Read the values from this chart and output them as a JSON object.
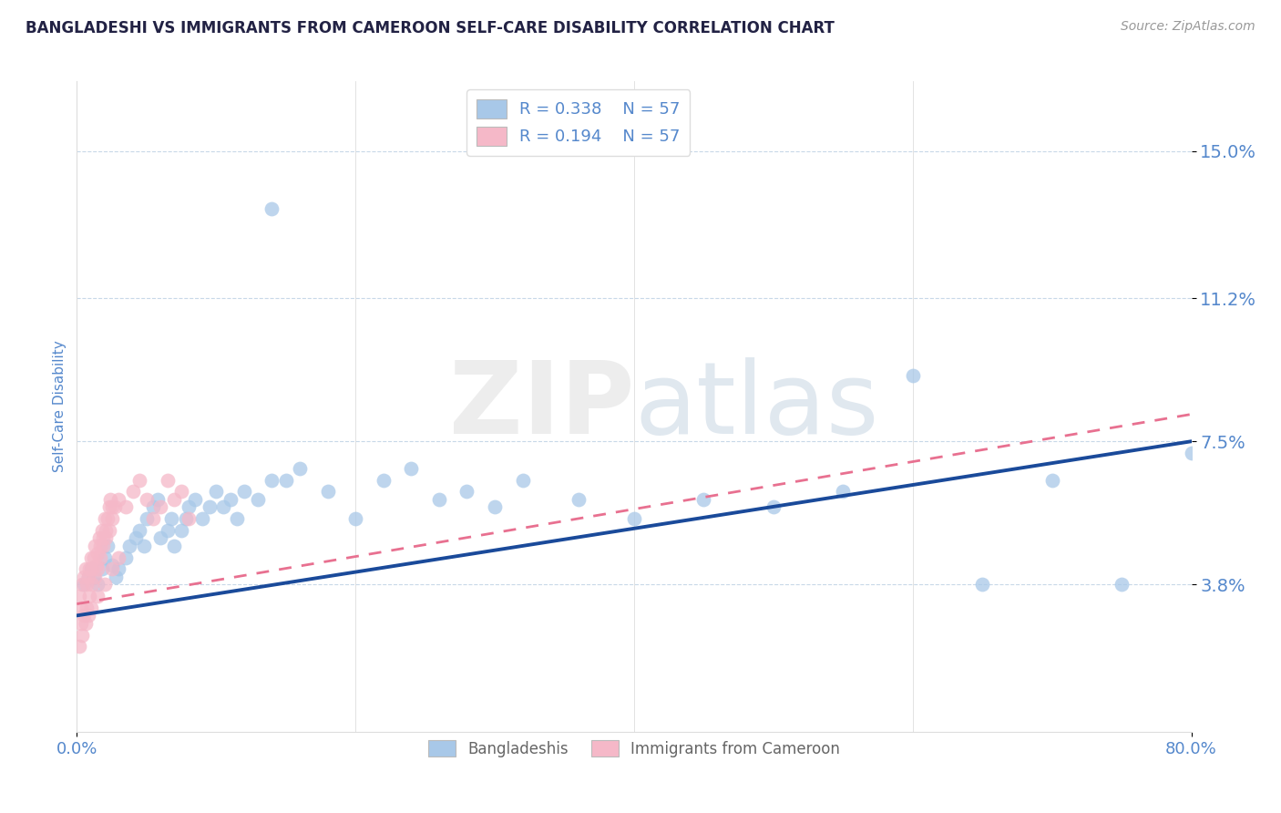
{
  "title": "BANGLADESHI VS IMMIGRANTS FROM CAMEROON SELF-CARE DISABILITY CORRELATION CHART",
  "source": "Source: ZipAtlas.com",
  "ylabel": "Self-Care Disability",
  "xlim": [
    0.0,
    0.8
  ],
  "ylim": [
    0.0,
    0.168
  ],
  "yticks": [
    0.038,
    0.075,
    0.112,
    0.15
  ],
  "ytick_labels": [
    "3.8%",
    "7.5%",
    "11.2%",
    "15.0%"
  ],
  "xtick_labels": [
    "0.0%",
    "80.0%"
  ],
  "xtick_positions": [
    0.0,
    0.8
  ],
  "blue_color": "#A8C8E8",
  "pink_color": "#F5B8C8",
  "blue_line_color": "#1A4A9A",
  "pink_line_color": "#E87090",
  "grid_color": "#C8D8E8",
  "legend_R1": "R = 0.338",
  "legend_N1": "N = 57",
  "legend_R2": "R = 0.194",
  "legend_N2": "N = 57",
  "label1": "Bangladeshis",
  "label2": "Immigrants from Cameroon",
  "tick_color": "#5588CC",
  "background_color": "#FFFFFF",
  "blue_trend": [
    0.03,
    0.075
  ],
  "pink_trend": [
    0.033,
    0.082
  ],
  "blue_x": [
    0.005,
    0.008,
    0.01,
    0.012,
    0.015,
    0.018,
    0.02,
    0.022,
    0.025,
    0.028,
    0.03,
    0.035,
    0.038,
    0.042,
    0.045,
    0.048,
    0.05,
    0.055,
    0.058,
    0.06,
    0.065,
    0.068,
    0.07,
    0.075,
    0.078,
    0.08,
    0.085,
    0.09,
    0.095,
    0.1,
    0.105,
    0.11,
    0.115,
    0.12,
    0.13,
    0.14,
    0.15,
    0.16,
    0.18,
    0.2,
    0.22,
    0.24,
    0.26,
    0.28,
    0.3,
    0.32,
    0.36,
    0.4,
    0.45,
    0.5,
    0.55,
    0.6,
    0.65,
    0.7,
    0.75,
    0.8,
    0.14
  ],
  "blue_y": [
    0.038,
    0.04,
    0.042,
    0.04,
    0.038,
    0.042,
    0.045,
    0.048,
    0.043,
    0.04,
    0.042,
    0.045,
    0.048,
    0.05,
    0.052,
    0.048,
    0.055,
    0.058,
    0.06,
    0.05,
    0.052,
    0.055,
    0.048,
    0.052,
    0.055,
    0.058,
    0.06,
    0.055,
    0.058,
    0.062,
    0.058,
    0.06,
    0.055,
    0.062,
    0.06,
    0.065,
    0.065,
    0.068,
    0.062,
    0.055,
    0.065,
    0.068,
    0.06,
    0.062,
    0.058,
    0.065,
    0.06,
    0.055,
    0.06,
    0.058,
    0.062,
    0.092,
    0.038,
    0.065,
    0.038,
    0.072,
    0.135
  ],
  "pink_x": [
    0.002,
    0.003,
    0.004,
    0.005,
    0.006,
    0.007,
    0.008,
    0.009,
    0.01,
    0.011,
    0.012,
    0.013,
    0.014,
    0.015,
    0.016,
    0.017,
    0.018,
    0.019,
    0.02,
    0.021,
    0.022,
    0.023,
    0.024,
    0.025,
    0.003,
    0.005,
    0.007,
    0.009,
    0.011,
    0.013,
    0.015,
    0.017,
    0.019,
    0.021,
    0.023,
    0.025,
    0.027,
    0.03,
    0.035,
    0.04,
    0.045,
    0.05,
    0.055,
    0.06,
    0.065,
    0.07,
    0.075,
    0.08,
    0.002,
    0.004,
    0.006,
    0.008,
    0.01,
    0.015,
    0.02,
    0.025,
    0.03
  ],
  "pink_y": [
    0.035,
    0.032,
    0.038,
    0.04,
    0.042,
    0.038,
    0.04,
    0.042,
    0.045,
    0.042,
    0.045,
    0.048,
    0.043,
    0.046,
    0.05,
    0.048,
    0.052,
    0.05,
    0.055,
    0.052,
    0.055,
    0.058,
    0.06,
    0.058,
    0.028,
    0.03,
    0.032,
    0.035,
    0.038,
    0.04,
    0.042,
    0.045,
    0.048,
    0.05,
    0.052,
    0.055,
    0.058,
    0.06,
    0.058,
    0.062,
    0.065,
    0.06,
    0.055,
    0.058,
    0.065,
    0.06,
    0.062,
    0.055,
    0.022,
    0.025,
    0.028,
    0.03,
    0.032,
    0.035,
    0.038,
    0.042,
    0.045
  ]
}
